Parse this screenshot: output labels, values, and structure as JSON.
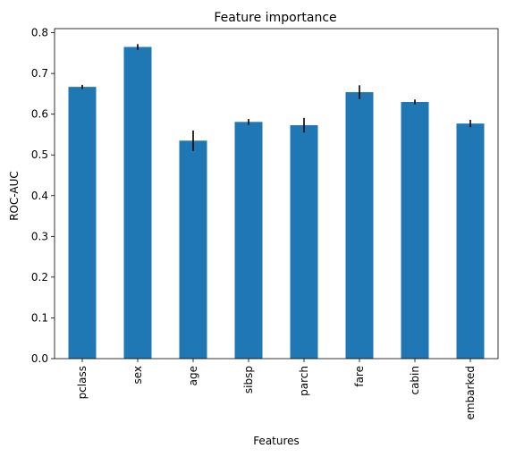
{
  "chart_data": {
    "type": "bar",
    "title": "Feature importance",
    "xlabel": "Features",
    "ylabel": "ROC-AUC",
    "categories": [
      "pclass",
      "sex",
      "age",
      "sibsp",
      "parch",
      "fare",
      "cabin",
      "embarked"
    ],
    "values": [
      0.667,
      0.765,
      0.535,
      0.581,
      0.573,
      0.654,
      0.63,
      0.577
    ],
    "errors": [
      0.005,
      0.007,
      0.025,
      0.007,
      0.018,
      0.017,
      0.006,
      0.009
    ],
    "ylim": [
      0,
      0.81
    ],
    "yticks": [
      0.0,
      0.1,
      0.2,
      0.3,
      0.4,
      0.5,
      0.6,
      0.7,
      0.8
    ],
    "ytick_labels": [
      "0.0",
      "0.1",
      "0.2",
      "0.3",
      "0.4",
      "0.5",
      "0.6",
      "0.7",
      "0.8"
    ],
    "grid": false,
    "colors": {
      "bar": "#1f77b4",
      "error": "#000000",
      "axes": "#000000"
    }
  }
}
